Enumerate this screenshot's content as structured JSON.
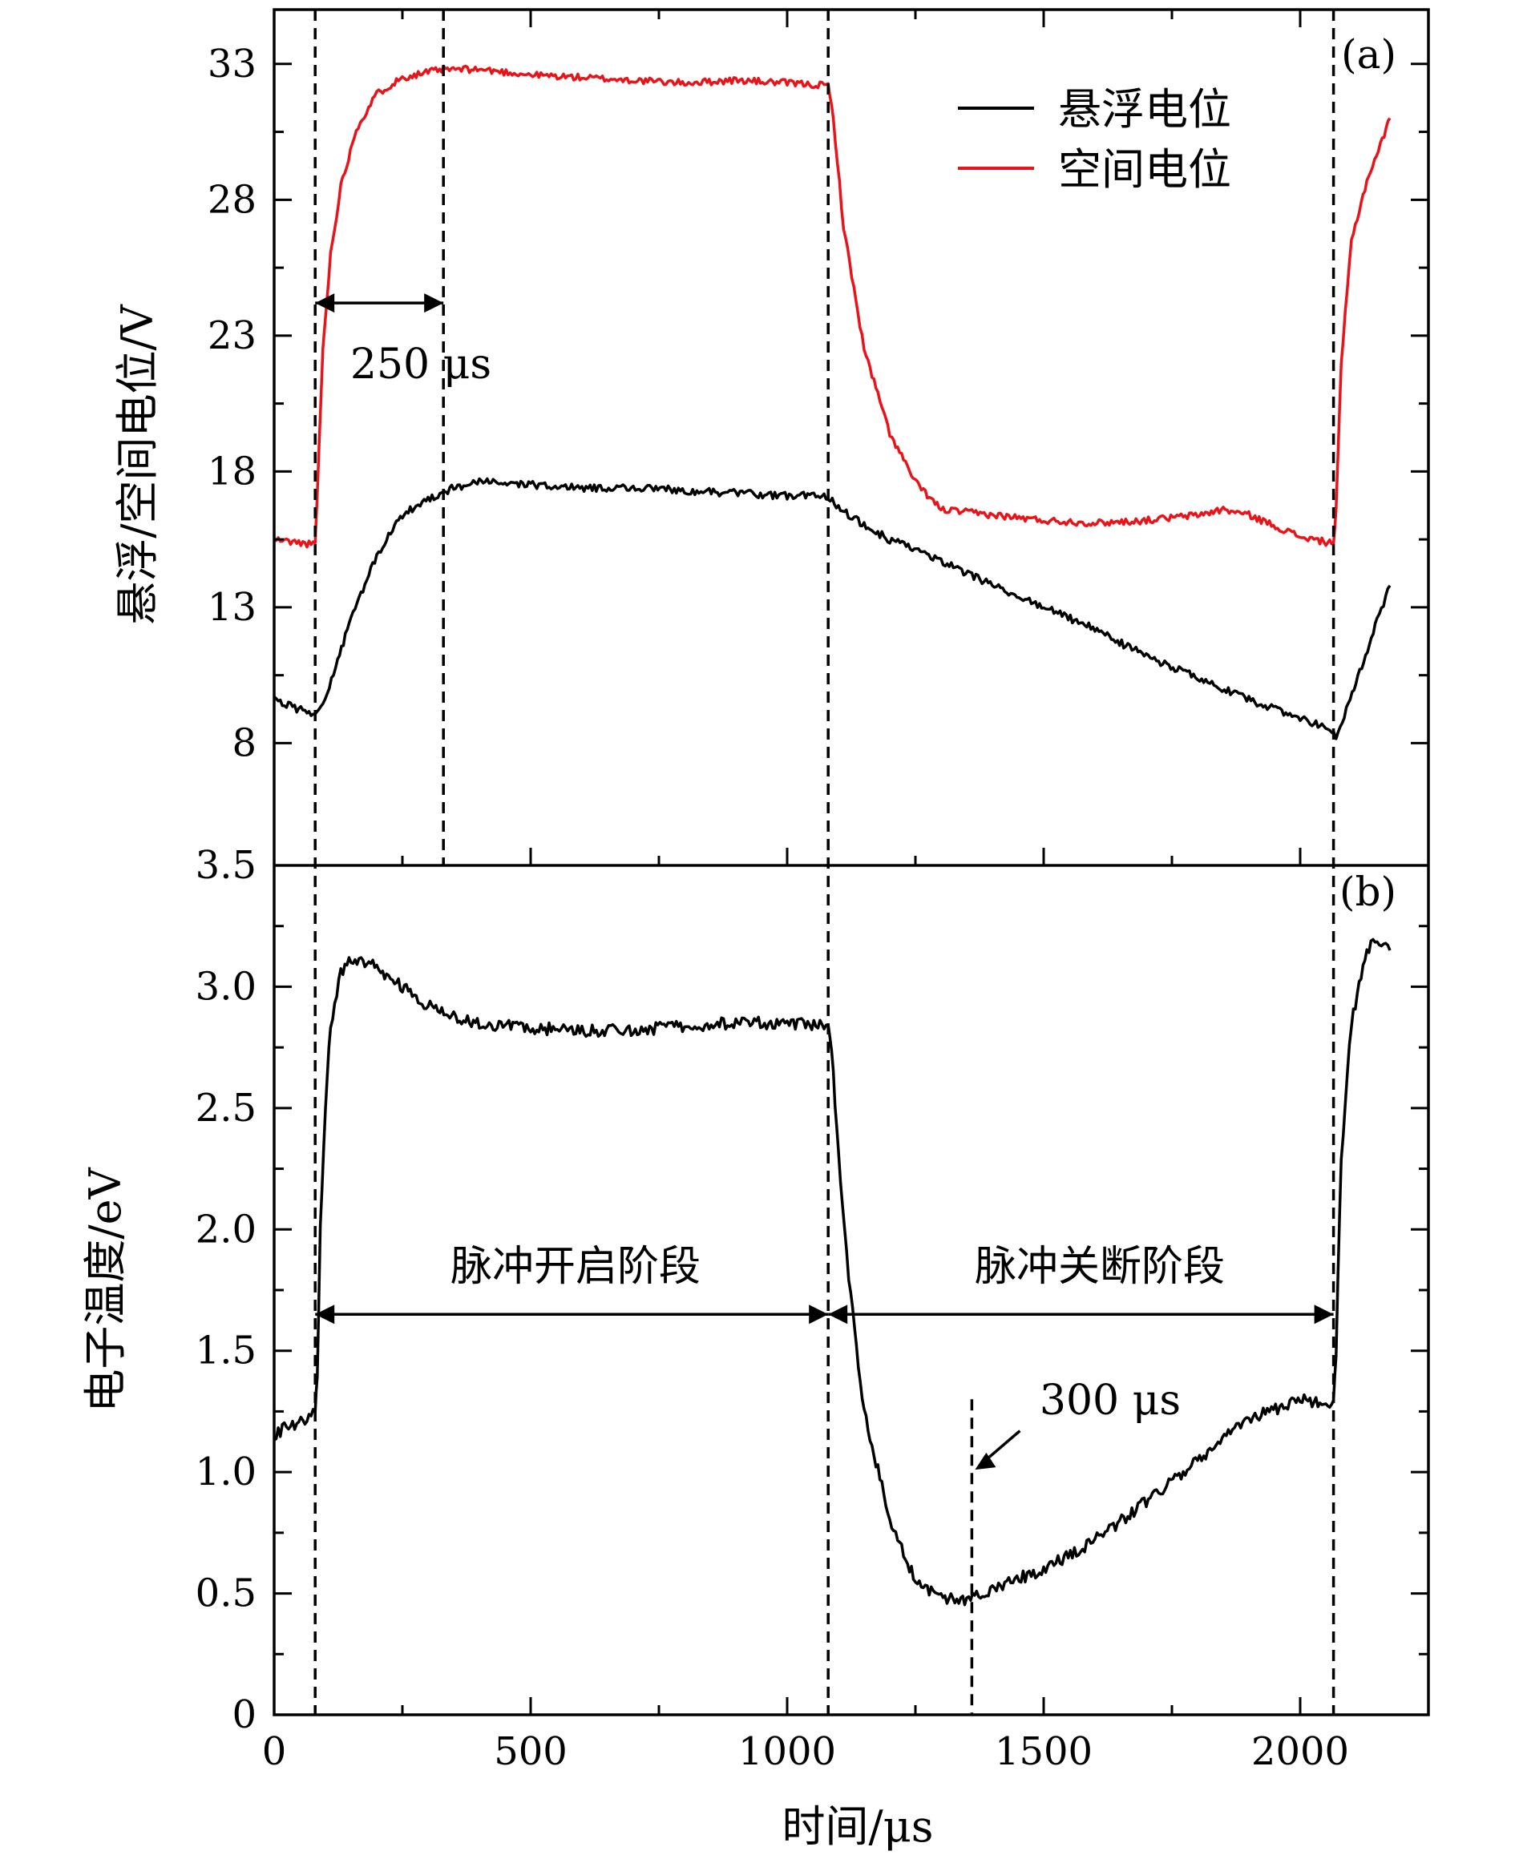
{
  "chart_data": [
    {
      "panel": "(a)",
      "type": "line",
      "ylabel": "悬浮/空间电位/V",
      "xlim": [
        0,
        2250
      ],
      "ylim": [
        3.5,
        35
      ],
      "yticks": [
        8,
        13,
        18,
        23,
        28,
        33
      ],
      "ytick_labels": [
        "8",
        "13",
        "18",
        "23",
        "28",
        "33"
      ],
      "legend": {
        "position": "top-right",
        "entries": [
          "悬浮电位",
          "空间电位"
        ]
      },
      "series": [
        {
          "name": "悬浮电位",
          "color": "#000000",
          "x": [
            0,
            40,
            80,
            95,
            120,
            150,
            200,
            250,
            300,
            350,
            400,
            450,
            500,
            600,
            700,
            800,
            900,
            1000,
            1080,
            1100,
            1150,
            1200,
            1300,
            1400,
            1500,
            1600,
            1700,
            1800,
            1900,
            2000,
            2050,
            2070,
            2090,
            2120,
            2150,
            2175
          ],
          "y": [
            9.6,
            9.3,
            9.1,
            9.4,
            10.8,
            12.6,
            14.9,
            16.4,
            17.0,
            17.4,
            17.6,
            17.6,
            17.5,
            17.4,
            17.4,
            17.3,
            17.2,
            17.1,
            17.1,
            16.7,
            16.0,
            15.5,
            14.7,
            13.8,
            13.0,
            12.2,
            11.2,
            10.4,
            9.6,
            8.9,
            8.6,
            8.2,
            9.2,
            10.8,
            12.5,
            13.8
          ]
        },
        {
          "name": "空间电位",
          "color": "#e8141a",
          "x": [
            0,
            40,
            80,
            84,
            95,
            110,
            130,
            160,
            200,
            250,
            300,
            330,
            400,
            500,
            600,
            700,
            800,
            900,
            1000,
            1080,
            1090,
            1110,
            1150,
            1200,
            1250,
            1300,
            1400,
            1500,
            1600,
            1700,
            1800,
            1850,
            1900,
            2000,
            2050,
            2065,
            2070,
            2080,
            2100,
            2130,
            2160,
            2175
          ],
          "y": [
            15.5,
            15.4,
            15.3,
            17.2,
            22.5,
            26.0,
            28.5,
            30.6,
            31.9,
            32.5,
            32.7,
            32.8,
            32.8,
            32.6,
            32.5,
            32.4,
            32.3,
            32.4,
            32.3,
            32.2,
            31.0,
            27.0,
            22.5,
            19.4,
            17.6,
            16.6,
            16.4,
            16.2,
            16.1,
            16.2,
            16.4,
            16.6,
            16.4,
            15.6,
            15.4,
            15.4,
            16.5,
            22.0,
            26.5,
            28.7,
            30.2,
            31.0
          ]
        }
      ],
      "annotations": [
        {
          "text": "250 μs",
          "x_from": 80,
          "x_to": 330,
          "y": 24.2
        }
      ]
    },
    {
      "panel": "(b)",
      "type": "line",
      "ylabel": "电子温度/eV",
      "xlabel": "时间/μs",
      "xlim": [
        0,
        2250
      ],
      "ylim": [
        0,
        3.5
      ],
      "xticks": [
        0,
        500,
        1000,
        1500,
        2000
      ],
      "xtick_labels": [
        "0",
        "500",
        "1000",
        "1500",
        "2000"
      ],
      "yticks": [
        0,
        0.5,
        1.0,
        1.5,
        2.0,
        2.5,
        3.0,
        3.5
      ],
      "ytick_labels": [
        "0",
        "0.5",
        "1.0",
        "1.5",
        "2.0",
        "2.5",
        "3.0",
        "3.5"
      ],
      "series": [
        {
          "color": "#000000",
          "x": [
            0,
            20,
            40,
            60,
            80,
            84,
            90,
            100,
            110,
            130,
            150,
            200,
            250,
            300,
            350,
            400,
            450,
            500,
            600,
            700,
            800,
            900,
            1000,
            1080,
            1090,
            1100,
            1120,
            1150,
            1200,
            1250,
            1300,
            1350,
            1400,
            1500,
            1600,
            1700,
            1800,
            1900,
            2000,
            2050,
            2065,
            2070,
            2080,
            2100,
            2130,
            2150,
            2175
          ],
          "y": [
            1.15,
            1.18,
            1.2,
            1.22,
            1.24,
            1.4,
            2.0,
            2.5,
            2.85,
            3.05,
            3.12,
            3.08,
            3.0,
            2.92,
            2.88,
            2.85,
            2.84,
            2.83,
            2.82,
            2.82,
            2.84,
            2.85,
            2.85,
            2.84,
            2.65,
            2.3,
            1.8,
            1.25,
            0.8,
            0.55,
            0.48,
            0.47,
            0.52,
            0.6,
            0.72,
            0.88,
            1.05,
            1.22,
            1.3,
            1.28,
            1.3,
            1.5,
            2.3,
            2.85,
            3.15,
            3.2,
            3.15
          ]
        }
      ],
      "annotations": [
        {
          "text": "脉冲开启阶段",
          "x_from": 80,
          "x_to": 1080,
          "y": 1.65
        },
        {
          "text": "脉冲关断阶段",
          "x_from": 1080,
          "x_to": 2065,
          "y": 1.65
        },
        {
          "text": "300 μs",
          "x": 1360
        }
      ]
    }
  ],
  "guide_lines_x": [
    80,
    330,
    1080,
    2065,
    1360
  ],
  "xtick_minor": [
    250,
    750,
    1250,
    1750
  ]
}
